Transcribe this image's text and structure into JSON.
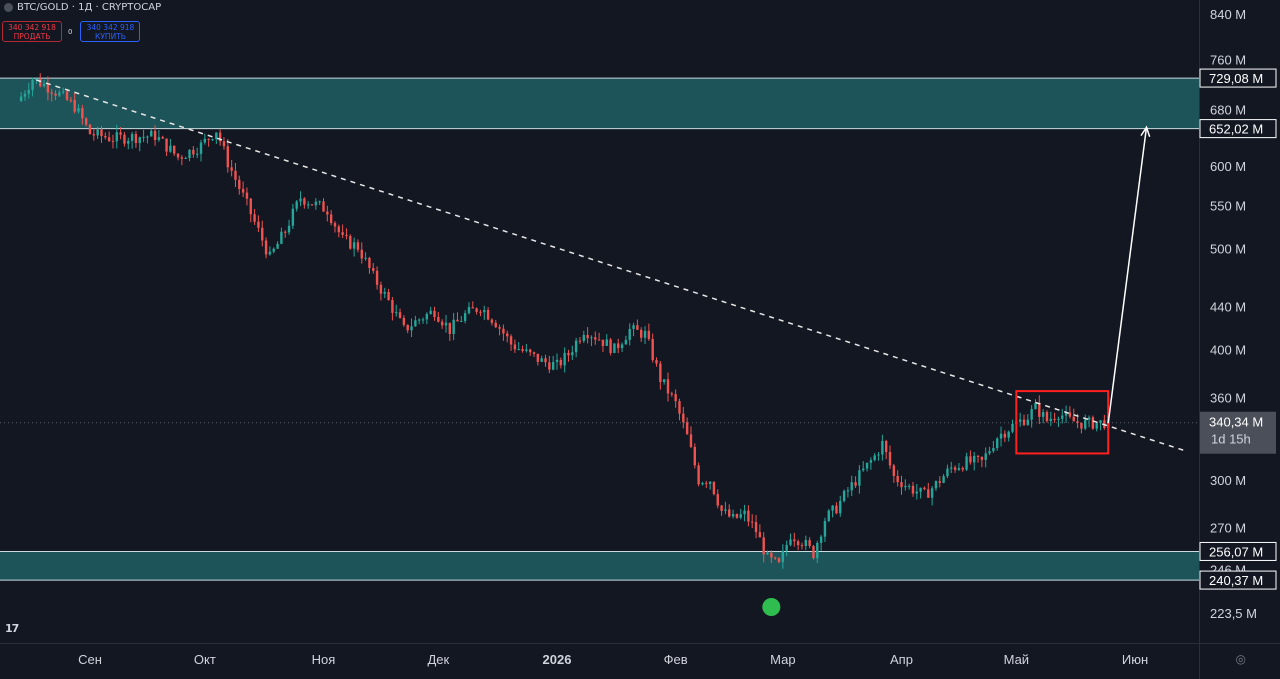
{
  "header": {
    "symbol": "BTC/GOLD · 1Д · CRYPTOCAP",
    "sell_price": "340 342 918",
    "sell_label": "ПРОДАТЬ",
    "spread": "0",
    "buy_price": "340 342 918",
    "buy_label": "КУПИТЬ"
  },
  "colors": {
    "background": "#131722",
    "up": "#26a69a",
    "down": "#ef5350",
    "zone": "#1e5f63",
    "highlight_box": "#ff2020",
    "text": "#d1d4dc"
  },
  "price_axis": {
    "ticks": [
      "840 M",
      "760 M",
      "680 M",
      "600 M",
      "550 M",
      "500 M",
      "440 M",
      "400 M",
      "360 M",
      "300 M",
      "270 M",
      "246 M",
      "223,5 M"
    ],
    "tick_values": [
      840,
      760,
      680,
      600,
      550,
      500,
      440,
      400,
      360,
      300,
      270,
      246,
      223.5
    ],
    "scale": "log"
  },
  "price_labels": [
    {
      "text": "729,08 M",
      "value": 729.08
    },
    {
      "text": "652,02 M",
      "value": 652.02
    },
    {
      "text": "256,07 M",
      "value": 256.07
    },
    {
      "text": "240,37 M",
      "value": 240.37
    }
  ],
  "current_price": {
    "text": "340,34 M",
    "value": 340.34,
    "countdown": "1d 15h"
  },
  "time_axis": {
    "labels": [
      "Сен",
      "Окт",
      "Ноя",
      "Дек",
      "2026",
      "Фев",
      "Мар",
      "Апр",
      "Май",
      "Июн"
    ],
    "bold": "2026"
  },
  "zones": [
    {
      "name": "resistance",
      "top": 729.08,
      "bottom": 652.02
    },
    {
      "name": "support",
      "top": 256.07,
      "bottom": 240.37
    }
  ],
  "annotations": {
    "trendline": {
      "from_date": "2025-08-18",
      "from_value": 726,
      "to_date": "2026-06-14",
      "to_value": 320,
      "style": "dashed"
    },
    "highlight_box": {
      "from_date": "2026-05-01",
      "to_date": "2026-05-25",
      "top": 365,
      "bottom": 318
    },
    "projection_arrow": {
      "from_date": "2026-05-25",
      "from_value": 340,
      "to_date": "2026-06-04",
      "to_value": 654
    },
    "signal_marker": {
      "date": "2026-02-26",
      "position": "below-low"
    }
  },
  "chart_data": {
    "type": "candlestick",
    "interval": "1D",
    "y_scale": "log",
    "ylim": [
      215,
      870
    ],
    "x_range": [
      "2025-08-13",
      "2026-06-22"
    ],
    "series": [
      {
        "name": "BTC/GOLD",
        "anchors": [
          [
            "2025-08-14",
            700
          ],
          [
            "2025-08-17",
            728
          ],
          [
            "2025-08-22",
            712
          ],
          [
            "2025-08-28",
            685
          ],
          [
            "2025-09-01",
            645
          ],
          [
            "2025-09-07",
            638
          ],
          [
            "2025-09-12",
            640
          ],
          [
            "2025-09-18",
            642
          ],
          [
            "2025-09-24",
            612
          ],
          [
            "2025-09-30",
            628
          ],
          [
            "2025-10-04",
            650
          ],
          [
            "2025-10-07",
            605
          ],
          [
            "2025-10-10",
            572
          ],
          [
            "2025-10-14",
            530
          ],
          [
            "2025-10-18",
            490
          ],
          [
            "2025-10-22",
            520
          ],
          [
            "2025-10-26",
            560
          ],
          [
            "2025-10-29",
            553
          ],
          [
            "2025-11-02",
            545
          ],
          [
            "2025-11-06",
            510
          ],
          [
            "2025-11-10",
            502
          ],
          [
            "2025-11-14",
            470
          ],
          [
            "2025-11-18",
            445
          ],
          [
            "2025-11-22",
            418
          ],
          [
            "2025-11-26",
            428
          ],
          [
            "2025-11-30",
            436
          ],
          [
            "2025-12-04",
            418
          ],
          [
            "2025-12-08",
            432
          ],
          [
            "2025-12-12",
            440
          ],
          [
            "2025-12-16",
            425
          ],
          [
            "2025-12-20",
            405
          ],
          [
            "2025-12-24",
            397
          ],
          [
            "2025-12-28",
            390
          ],
          [
            "2026-01-01",
            386
          ],
          [
            "2026-01-04",
            396
          ],
          [
            "2026-01-08",
            418
          ],
          [
            "2026-01-12",
            410
          ],
          [
            "2026-01-16",
            400
          ],
          [
            "2026-01-20",
            418
          ],
          [
            "2026-01-24",
            414
          ],
          [
            "2026-01-28",
            375
          ],
          [
            "2026-02-01",
            355
          ],
          [
            "2026-02-04",
            330
          ],
          [
            "2026-02-07",
            300
          ],
          [
            "2026-02-10",
            300
          ],
          [
            "2026-02-13",
            280
          ],
          [
            "2026-02-16",
            275
          ],
          [
            "2026-02-19",
            278
          ],
          [
            "2026-02-22",
            268
          ],
          [
            "2026-02-25",
            252
          ],
          [
            "2026-02-28",
            248
          ],
          [
            "2026-03-03",
            266
          ],
          [
            "2026-03-06",
            262
          ],
          [
            "2026-03-09",
            255
          ],
          [
            "2026-03-12",
            275
          ],
          [
            "2026-03-15",
            282
          ],
          [
            "2026-03-18",
            293
          ],
          [
            "2026-03-22",
            306
          ],
          [
            "2026-03-25",
            316
          ],
          [
            "2026-03-27",
            325
          ],
          [
            "2026-03-30",
            302
          ],
          [
            "2026-04-03",
            295
          ],
          [
            "2026-04-07",
            290
          ],
          [
            "2026-04-10",
            297
          ],
          [
            "2026-04-14",
            308
          ],
          [
            "2026-04-18",
            312
          ],
          [
            "2026-04-22",
            312
          ],
          [
            "2026-04-26",
            330
          ],
          [
            "2026-04-30",
            338
          ],
          [
            "2026-05-04",
            345
          ],
          [
            "2026-05-06",
            352
          ],
          [
            "2026-05-09",
            342
          ],
          [
            "2026-05-12",
            348
          ],
          [
            "2026-05-15",
            342
          ],
          [
            "2026-05-18",
            340
          ],
          [
            "2026-05-22",
            340
          ],
          [
            "2026-05-25",
            341
          ]
        ]
      }
    ]
  }
}
